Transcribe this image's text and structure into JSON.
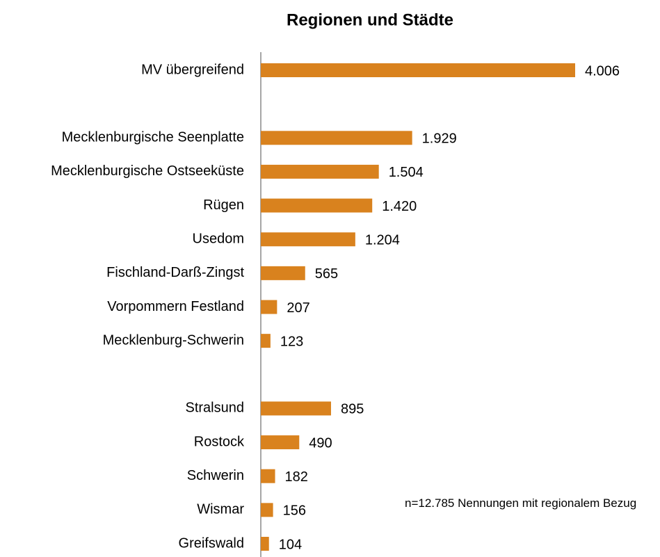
{
  "chart_data": {
    "type": "bar",
    "orientation": "horizontal",
    "title": "Regionen und Städte",
    "categories": [
      "MV übergreifend",
      null,
      "Mecklenburgische Seenplatte",
      "Mecklenburgische Ostseeküste",
      "Rügen",
      "Usedom",
      "Fischland-Darß-Zingst",
      "Vorpommern Festland",
      "Mecklenburg-Schwerin",
      null,
      "Stralsund",
      "Rostock",
      "Schwerin",
      "Wismar",
      "Greifswald"
    ],
    "values": [
      4006,
      null,
      1929,
      1504,
      1420,
      1204,
      565,
      207,
      123,
      null,
      895,
      490,
      182,
      156,
      104
    ],
    "value_labels": [
      "4.006",
      null,
      "1.929",
      "1.504",
      "1.420",
      "1.204",
      "565",
      "207",
      "123",
      null,
      "895",
      "490",
      "182",
      "156",
      "104"
    ],
    "color": "#d9821e",
    "annotation": "n=12.785 Nennungen mit regionalem Bezug"
  }
}
